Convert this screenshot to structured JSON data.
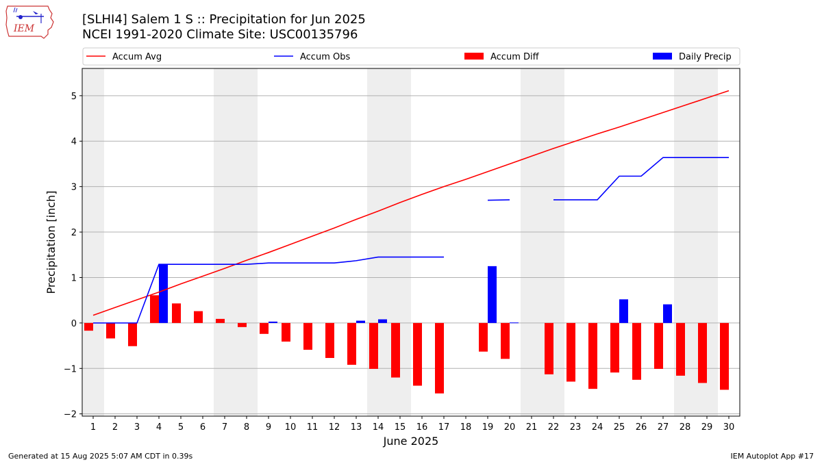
{
  "header": {
    "title_line1": "[SLHI4] Salem 1 S :: Precipitation for Jun 2025",
    "title_line2": "NCEI 1991-2020 Climate Site: USC00135796"
  },
  "logo": {
    "text": "IEM",
    "icon": "iem-iowa-map-logo"
  },
  "footer": {
    "generated": "Generated at 15 Aug 2025 5:07 AM CDT in 0.39s",
    "app": "IEM Autoplot App #17"
  },
  "colors": {
    "avg": "#ff0000",
    "obs": "#0000ff",
    "diff": "#ff0000",
    "daily": "#0000ff",
    "weekend": "#eeeeee",
    "grid": "#b0b0b0"
  },
  "chart_data": {
    "type": "bar",
    "title": "[SLHI4] Salem 1 S :: Precipitation for Jun 2025",
    "xlabel": "June 2025",
    "ylabel": "Precipitation [inch]",
    "ylim": [
      -2.05,
      5.6
    ],
    "xlim": [
      0.5,
      30.5
    ],
    "yticks": [
      -2,
      -1,
      0,
      1,
      2,
      3,
      4,
      5
    ],
    "ytick_labels": [
      "−2",
      "−1",
      "0",
      "1",
      "2",
      "3",
      "4",
      "5"
    ],
    "days": [
      1,
      2,
      3,
      4,
      5,
      6,
      7,
      8,
      9,
      10,
      11,
      12,
      13,
      14,
      15,
      16,
      17,
      18,
      19,
      20,
      21,
      22,
      23,
      24,
      25,
      26,
      27,
      28,
      29,
      30
    ],
    "day_labels": [
      "1",
      "2",
      "3",
      "4",
      "5",
      "6",
      "7",
      "8",
      "9",
      "10",
      "11",
      "12",
      "13",
      "14",
      "15",
      "16",
      "17",
      "18",
      "19",
      "20",
      "21",
      "22",
      "23",
      "24",
      "25",
      "26",
      "27",
      "28",
      "29",
      "30"
    ],
    "weekend_days": [
      1,
      7,
      8,
      14,
      15,
      21,
      22,
      28,
      29
    ],
    "grid": true,
    "legend_position": "top",
    "legend": [
      "Accum Avg",
      "Accum Obs",
      "Accum Diff",
      "Daily Precip"
    ],
    "series": [
      {
        "name": "Accum Avg",
        "kind": "line",
        "values": [
          0.17,
          0.34,
          0.51,
          0.68,
          0.86,
          1.03,
          1.2,
          1.38,
          1.55,
          1.73,
          1.91,
          2.09,
          2.28,
          2.46,
          2.65,
          2.83,
          3.0,
          3.16,
          3.33,
          3.5,
          3.67,
          3.84,
          4.0,
          4.16,
          4.31,
          4.47,
          4.63,
          4.79,
          4.95,
          5.11
        ]
      },
      {
        "name": "Accum Obs",
        "kind": "line",
        "values": [
          0.0,
          0.0,
          0.0,
          1.29,
          1.29,
          1.29,
          1.29,
          1.29,
          1.32,
          1.32,
          1.32,
          1.32,
          1.37,
          1.45,
          1.45,
          1.45,
          1.45,
          null,
          2.7,
          2.71,
          null,
          2.71,
          2.71,
          2.71,
          3.23,
          3.23,
          3.64,
          3.64,
          3.64,
          3.64
        ]
      },
      {
        "name": "Accum Diff",
        "kind": "bar",
        "values": [
          -0.17,
          -0.34,
          -0.51,
          0.61,
          0.43,
          0.26,
          0.09,
          -0.09,
          -0.24,
          -0.41,
          -0.59,
          -0.77,
          -0.92,
          -1.01,
          -1.2,
          -1.38,
          -1.55,
          null,
          -0.63,
          -0.79,
          null,
          -1.13,
          -1.29,
          -1.45,
          -1.09,
          -1.25,
          -1.01,
          -1.16,
          -1.32,
          -1.47
        ]
      },
      {
        "name": "Daily Precip",
        "kind": "bar",
        "values": [
          0,
          0,
          0,
          1.29,
          0,
          0,
          0,
          0,
          0.03,
          0,
          0,
          0,
          0.05,
          0.08,
          0,
          0,
          0,
          null,
          1.25,
          0.01,
          null,
          0,
          0,
          0,
          0.52,
          0,
          0.41,
          0,
          0,
          0
        ]
      }
    ]
  }
}
